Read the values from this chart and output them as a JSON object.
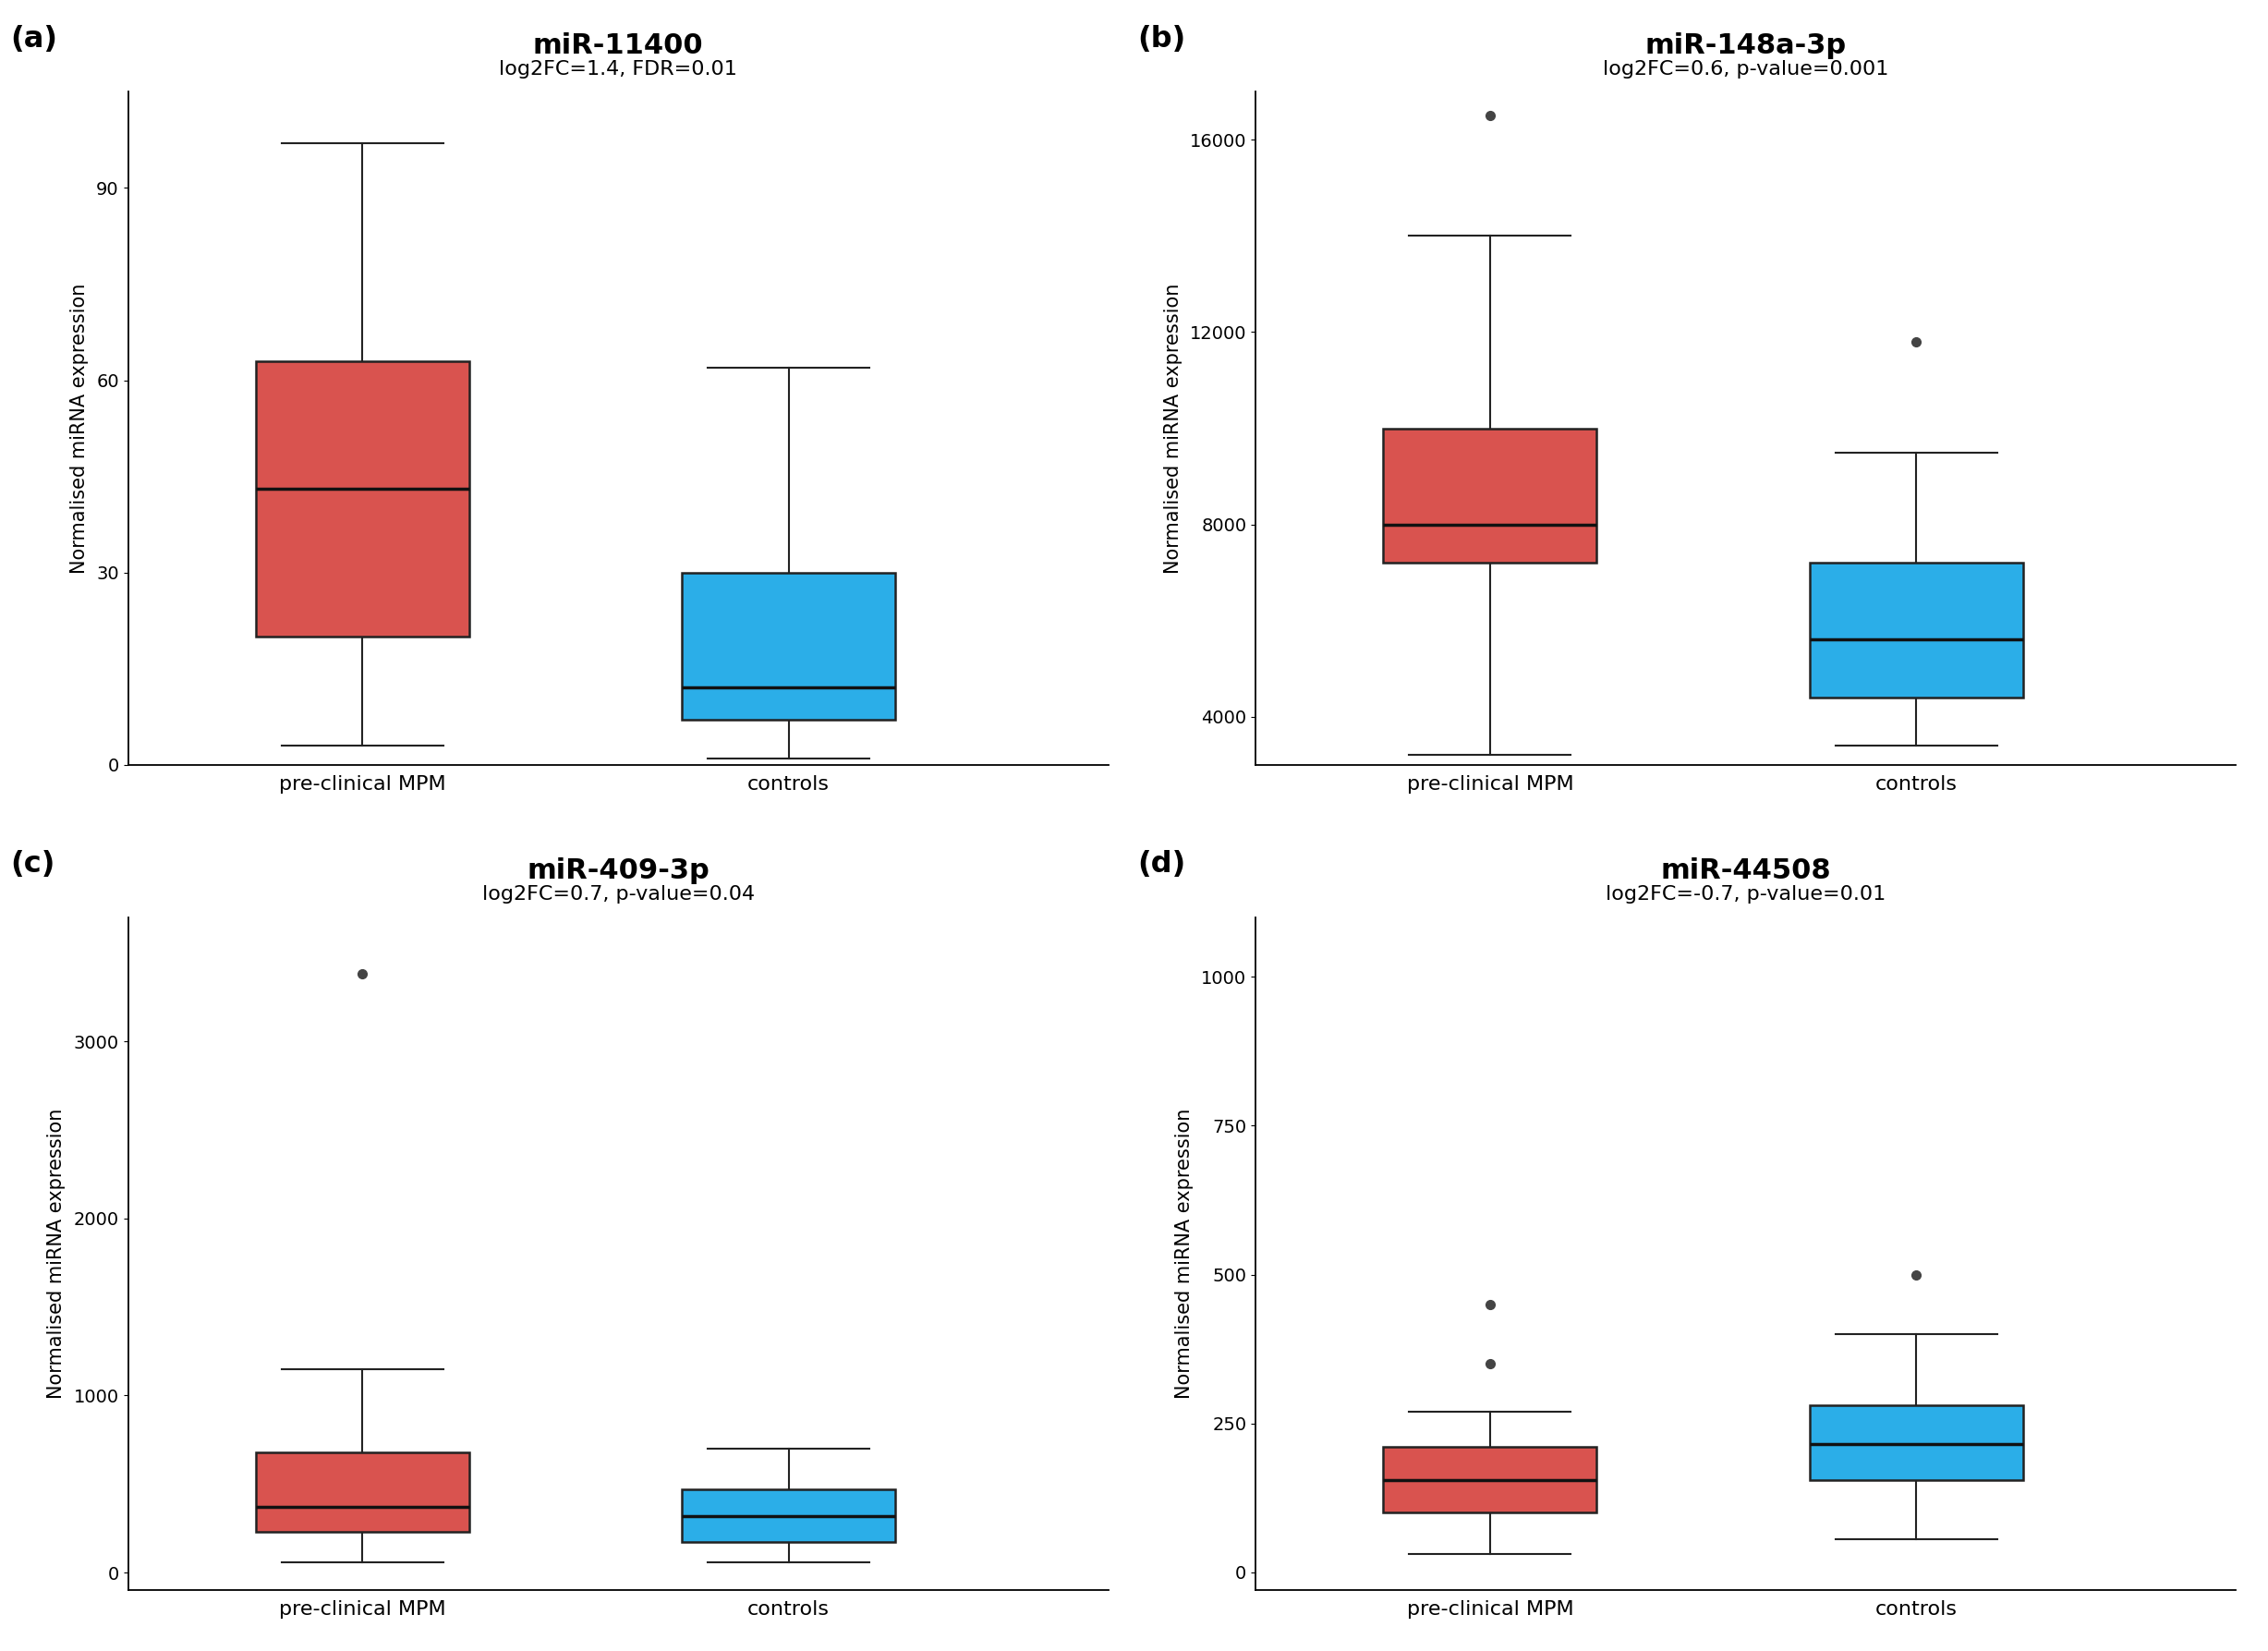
{
  "panels": [
    {
      "label": "(a)",
      "title": "miR-11400",
      "subtitle": "log2FC=1.4, FDR=0.01",
      "ylabel": "Normalised miRNA expression",
      "ylim": [
        0,
        105
      ],
      "yticks": [
        0,
        30,
        60,
        90
      ],
      "groups": [
        {
          "name": "pre-clinical MPM",
          "color": "#d9534f",
          "Q1": 20,
          "median": 43,
          "Q3": 63,
          "whisker_low": 3,
          "whisker_high": 97,
          "outliers": []
        },
        {
          "name": "controls",
          "color": "#2baee8",
          "Q1": 7,
          "median": 12,
          "Q3": 30,
          "whisker_low": 1,
          "whisker_high": 62,
          "outliers": []
        }
      ]
    },
    {
      "label": "(b)",
      "title": "miR-148a-3p",
      "subtitle": "log2FC=0.6, p-value=0.001",
      "ylabel": "Normalised miRNA expression",
      "ylim": [
        3000,
        17000
      ],
      "yticks": [
        4000,
        8000,
        12000,
        16000
      ],
      "groups": [
        {
          "name": "pre-clinical MPM",
          "color": "#d9534f",
          "Q1": 7200,
          "median": 8000,
          "Q3": 10000,
          "whisker_low": 3200,
          "whisker_high": 14000,
          "outliers": [
            16500
          ]
        },
        {
          "name": "controls",
          "color": "#2baee8",
          "Q1": 4400,
          "median": 5600,
          "Q3": 7200,
          "whisker_low": 3400,
          "whisker_high": 9500,
          "outliers": [
            11800
          ]
        }
      ]
    },
    {
      "label": "(c)",
      "title": "miR-409-3p",
      "subtitle": "log2FC=0.7, p-value=0.04",
      "ylabel": "Normalised miRNA expression",
      "ylim": [
        -100,
        3700
      ],
      "yticks": [
        0,
        1000,
        2000,
        3000
      ],
      "groups": [
        {
          "name": "pre-clinical MPM",
          "color": "#d9534f",
          "Q1": 230,
          "median": 370,
          "Q3": 680,
          "whisker_low": 60,
          "whisker_high": 1150,
          "outliers": [
            3380
          ]
        },
        {
          "name": "controls",
          "color": "#2baee8",
          "Q1": 170,
          "median": 320,
          "Q3": 470,
          "whisker_low": 60,
          "whisker_high": 700,
          "outliers": []
        }
      ]
    },
    {
      "label": "(d)",
      "title": "miR-44508",
      "subtitle": "log2FC=-0.7, p-value=0.01",
      "ylabel": "Normalised miRNA expression",
      "ylim": [
        -30,
        1100
      ],
      "yticks": [
        0,
        250,
        500,
        750,
        1000
      ],
      "groups": [
        {
          "name": "pre-clinical MPM",
          "color": "#d9534f",
          "Q1": 100,
          "median": 155,
          "Q3": 210,
          "whisker_low": 30,
          "whisker_high": 270,
          "outliers": [
            350,
            450
          ]
        },
        {
          "name": "controls",
          "color": "#2baee8",
          "Q1": 155,
          "median": 215,
          "Q3": 280,
          "whisker_low": 55,
          "whisker_high": 400,
          "outliers": [
            500
          ]
        }
      ]
    }
  ],
  "background_color": "#ffffff",
  "box_width": 0.5,
  "positions": [
    1,
    2
  ],
  "title_fontsize": 22,
  "subtitle_fontsize": 16,
  "label_fontsize": 23,
  "ylabel_fontsize": 15,
  "tick_fontsize": 14,
  "xlabel_fontsize": 16
}
